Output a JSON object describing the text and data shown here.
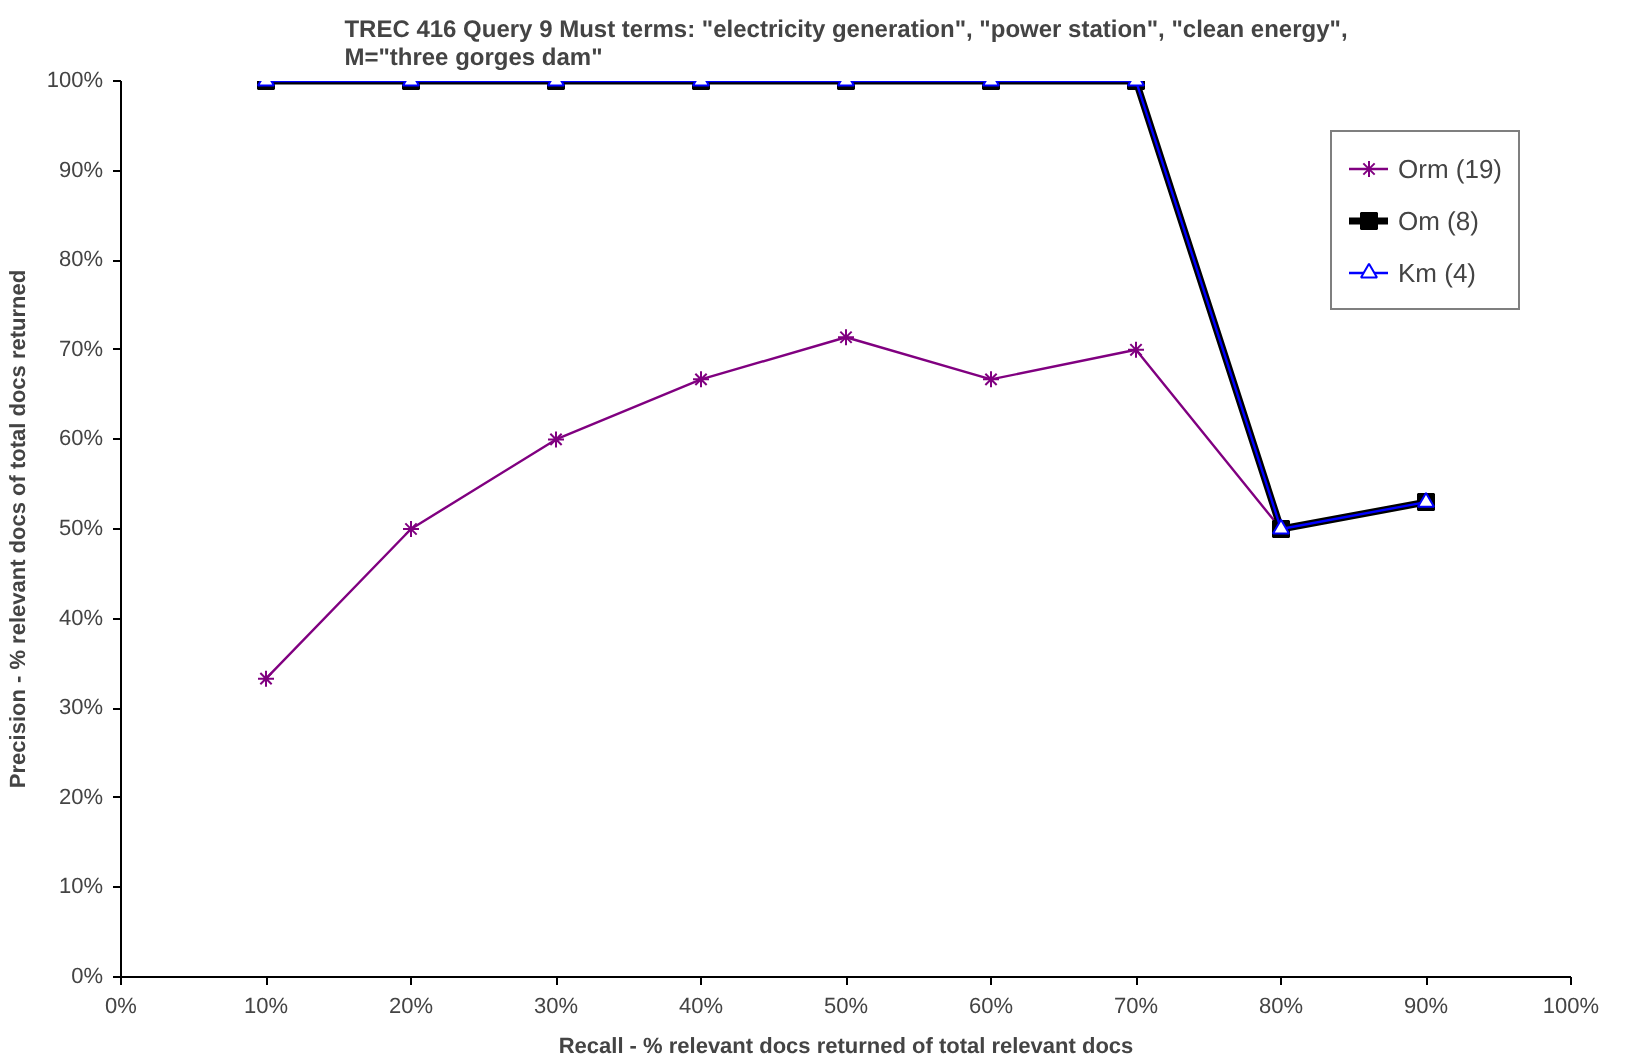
{
  "chart_data": {
    "type": "line",
    "title": "TREC 416 Query 9 Must terms: \"electricity generation\", \"power station\", \"clean energy\",\nM=\"three gorges dam\"",
    "xlabel": "Recall - % relevant docs returned of total relevant docs",
    "ylabel": "Precision - % relevant docs of total docs returned",
    "x": [
      10,
      20,
      30,
      40,
      50,
      60,
      70,
      80,
      90
    ],
    "series": [
      {
        "name": "Orm (19)",
        "color": "#800080",
        "marker": "cross",
        "values": [
          33.3,
          50,
          60,
          66.7,
          71.4,
          66.7,
          70,
          50,
          53
        ]
      },
      {
        "name": "Om (8)",
        "color": "#000000",
        "marker": "square",
        "values": [
          100,
          100,
          100,
          100,
          100,
          100,
          100,
          50,
          53
        ]
      },
      {
        "name": "Km (4)",
        "color": "#0000ff",
        "marker": "triangle",
        "values": [
          100,
          100,
          100,
          100,
          100,
          100,
          100,
          50,
          53
        ]
      }
    ],
    "xlim": [
      0,
      100
    ],
    "xticks": [
      {
        "value": 0,
        "label": "0%"
      },
      {
        "value": 10,
        "label": "10%"
      },
      {
        "value": 20,
        "label": "20%"
      },
      {
        "value": 30,
        "label": "30%"
      },
      {
        "value": 40,
        "label": "40%"
      },
      {
        "value": 50,
        "label": "50%"
      },
      {
        "value": 60,
        "label": "60%"
      },
      {
        "value": 70,
        "label": "70%"
      },
      {
        "value": 80,
        "label": "80%"
      },
      {
        "value": 90,
        "label": "90%"
      },
      {
        "value": 100,
        "label": "100%"
      }
    ],
    "ylim": [
      0,
      100
    ],
    "yticks": [
      {
        "value": 0,
        "label": "0%"
      },
      {
        "value": 10,
        "label": "10%"
      },
      {
        "value": 20,
        "label": "20%"
      },
      {
        "value": 30,
        "label": "30%"
      },
      {
        "value": 40,
        "label": "40%"
      },
      {
        "value": 50,
        "label": "50%"
      },
      {
        "value": 60,
        "label": "60%"
      },
      {
        "value": 70,
        "label": "70%"
      },
      {
        "value": 80,
        "label": "80%"
      },
      {
        "value": 90,
        "label": "90%"
      },
      {
        "value": 100,
        "label": "100%"
      }
    ],
    "grid": false,
    "legend": "top right"
  }
}
